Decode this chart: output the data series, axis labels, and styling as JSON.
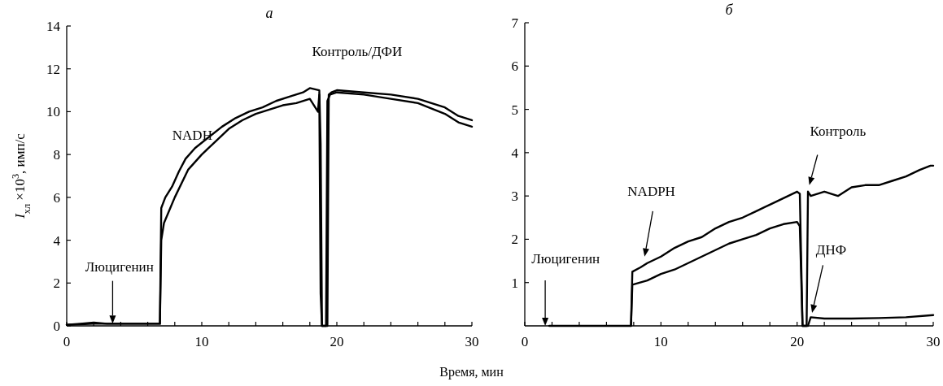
{
  "chart_data": [
    {
      "type": "line",
      "title": "а",
      "xlabel": "Время, мин",
      "ylabel": "I$_{хл}$ ×10$^{3}$, имп/с",
      "xlim": [
        0,
        30
      ],
      "ylim": [
        0,
        14
      ],
      "xticks": [
        0,
        {
          "value": 2,
          "label": null
        },
        {
          "value": 4,
          "label": null
        },
        {
          "value": 6,
          "label": null
        },
        {
          "value": 8,
          "label": null
        },
        10,
        {
          "value": 12,
          "label": null
        },
        {
          "value": 14,
          "label": null
        },
        {
          "value": 16,
          "label": null
        },
        {
          "value": 18,
          "label": null
        },
        20,
        {
          "value": 22,
          "label": null
        },
        {
          "value": 24,
          "label": null
        },
        {
          "value": 26,
          "label": null
        },
        {
          "value": 28,
          "label": null
        },
        30
      ],
      "yticks": [
        0,
        2,
        4,
        6,
        8,
        10,
        12,
        14
      ],
      "series": [
        {
          "color": "#000000",
          "x": [
            0,
            1,
            2,
            3,
            4,
            5,
            6,
            6.9,
            7.0,
            7.3,
            7.8,
            8.3,
            8.8,
            9.5,
            10.5,
            11.5,
            12.5,
            13.5,
            14.5,
            15.5,
            16.5,
            17.5,
            18,
            18.7,
            18.8,
            18.9,
            19.3,
            19.4,
            19.6,
            20,
            22,
            24,
            26,
            28,
            29,
            30
          ],
          "values": [
            0.05,
            0.1,
            0.15,
            0.1,
            0.1,
            0.1,
            0.1,
            0.1,
            5.5,
            6.0,
            6.5,
            7.2,
            7.8,
            8.3,
            8.8,
            9.3,
            9.7,
            10.0,
            10.2,
            10.5,
            10.7,
            10.9,
            11.1,
            11.0,
            8.5,
            0,
            0,
            10.8,
            10.9,
            11.0,
            10.9,
            10.8,
            10.6,
            10.2,
            9.8,
            9.6
          ]
        },
        {
          "color": "#000000",
          "x": [
            0,
            2,
            4,
            6,
            6.9,
            7.0,
            7.2,
            8,
            9,
            10,
            11,
            12,
            13,
            14,
            15,
            16,
            17,
            18,
            18.6,
            18.7,
            18.8,
            18.9,
            19.2,
            19.3,
            19.5,
            20,
            22,
            24,
            26,
            28,
            29,
            30
          ],
          "values": [
            0.05,
            0.1,
            0.1,
            0.1,
            0.1,
            4.0,
            4.8,
            6.0,
            7.3,
            8.0,
            8.6,
            9.2,
            9.6,
            9.9,
            10.1,
            10.3,
            10.4,
            10.6,
            10.0,
            10.8,
            1.5,
            0,
            0,
            10.5,
            10.8,
            10.9,
            10.8,
            10.6,
            10.4,
            9.9,
            9.5,
            9.3
          ]
        }
      ],
      "annotations": [
        "Люцигенин",
        "NADH",
        "Контроль/ДФИ"
      ]
    },
    {
      "type": "line",
      "title": "б",
      "xlim": [
        0,
        30
      ],
      "ylim": [
        0,
        7
      ],
      "xticks": [
        0,
        {
          "value": 2,
          "label": null
        },
        {
          "value": 4,
          "label": null
        },
        {
          "value": 6,
          "label": null
        },
        {
          "value": 8,
          "label": null
        },
        10,
        {
          "value": 12,
          "label": null
        },
        {
          "value": 14,
          "label": null
        },
        {
          "value": 16,
          "label": null
        },
        {
          "value": 18,
          "label": null
        },
        20,
        {
          "value": 22,
          "label": null
        },
        {
          "value": 24,
          "label": null
        },
        {
          "value": 26,
          "label": null
        },
        {
          "value": 28,
          "label": null
        },
        30
      ],
      "yticks": [
        1,
        2,
        3,
        4,
        5,
        6,
        7
      ],
      "series": [
        {
          "color": "#000000",
          "x": [
            1.8,
            3,
            5,
            7,
            7.8,
            7.9,
            8.5,
            9,
            10,
            11,
            12,
            13,
            14,
            15,
            16,
            17,
            18,
            19,
            20,
            20.2,
            20.4,
            20.7,
            20.8,
            21,
            22,
            23,
            24,
            25,
            26,
            27,
            28,
            29,
            29.8,
            30
          ],
          "values": [
            0,
            0,
            0,
            0,
            0,
            1.25,
            1.35,
            1.45,
            1.6,
            1.8,
            1.95,
            2.05,
            2.25,
            2.4,
            2.5,
            2.65,
            2.8,
            2.95,
            3.1,
            3.05,
            0,
            0,
            3.1,
            3.0,
            3.1,
            3.0,
            3.2,
            3.25,
            3.25,
            3.35,
            3.45,
            3.6,
            3.7,
            3.7
          ]
        },
        {
          "color": "#000000",
          "x": [
            7.8,
            7.9,
            9,
            10,
            11,
            12,
            13,
            14,
            15,
            16,
            17,
            18,
            19,
            20,
            20.2,
            20.4,
            20.8,
            21,
            22,
            24,
            26,
            28,
            30
          ],
          "values": [
            0,
            0.95,
            1.05,
            1.2,
            1.3,
            1.45,
            1.6,
            1.75,
            1.9,
            2.0,
            2.1,
            2.25,
            2.35,
            2.4,
            2.3,
            0,
            0,
            0.2,
            0.17,
            0.17,
            0.18,
            0.2,
            0.25
          ]
        }
      ],
      "annotations": [
        "Люцигенин",
        "NADPH",
        "Контроль",
        "ДНФ"
      ]
    }
  ]
}
